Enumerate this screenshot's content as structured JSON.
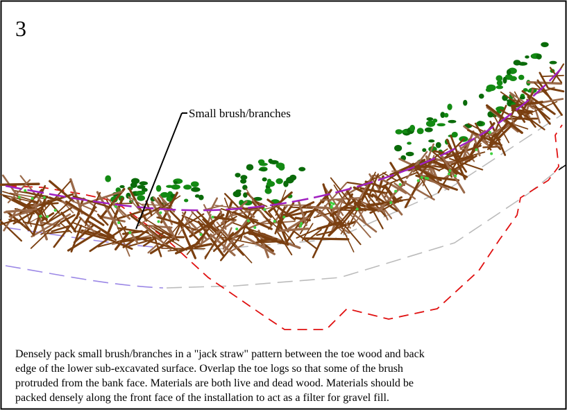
{
  "panel_number": "3",
  "callout": "Small brush/branches",
  "caption": {
    "lines": [
      "Densely pack small brush/branches in a \"jack straw\" pattern between the toe wood and back",
      "edge of the lower sub-excavated surface. Overlap the toe logs so that some of the brush",
      "protruded from the bank face. Materials are both live and dead wood. Materials should be",
      "packed densely along the front face of the installation to act as a filter for gravel fill."
    ]
  }
}
